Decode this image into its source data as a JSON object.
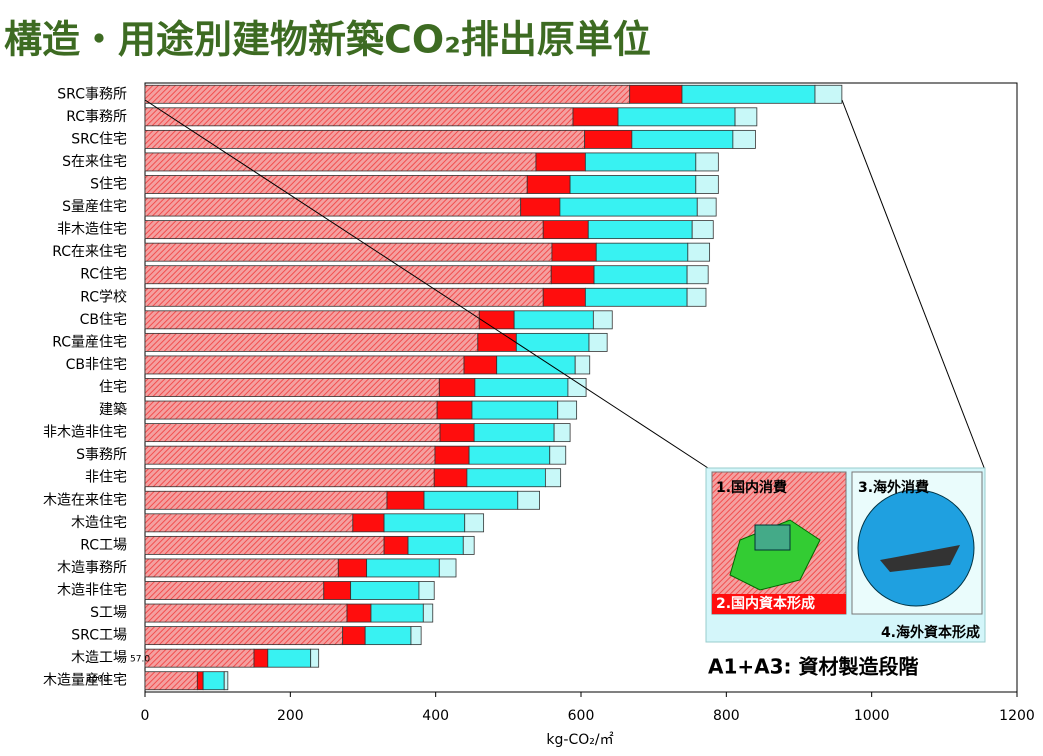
{
  "chart_data": {
    "type": "stacked-barh",
    "title": "構造・用途別建物新築CO₂排出原単位",
    "xlabel": "kg-CO₂/㎡",
    "annotations": [
      "A1+A3: 資材製造段階",
      "57.0",
      "2008"
    ],
    "categories": [
      "SRC事務所",
      "RC事務所",
      "SRC住宅",
      "S在来住宅",
      "S住宅",
      "S量産住宅",
      "非木造住宅",
      "RC在来住宅",
      "RC住宅",
      "RC学校",
      "CB住宅",
      "RC量産住宅",
      "CB非住宅",
      "住宅",
      "建築",
      "非木造非住宅",
      "S事務所",
      "非住宅",
      "木造在来住宅",
      "木造住宅",
      "RC工場",
      "木造事務所",
      "木造非住宅",
      "S工場",
      "SRC工場",
      "木造工場",
      "木造量産住宅"
    ],
    "series": [
      {
        "name": "1.国内消費",
        "color": "#f24e4e",
        "values": [
          667,
          589,
          605,
          538,
          526,
          517,
          548,
          560,
          559,
          548,
          460,
          458,
          439,
          405,
          402,
          406,
          399,
          398,
          333,
          286,
          329,
          266,
          246,
          278,
          272,
          150,
          72
        ]
      },
      {
        "name": "2.国内資本形成",
        "color": "#ff0d0d",
        "values": [
          72,
          62,
          65,
          68,
          59,
          54,
          62,
          61,
          59,
          58,
          48,
          53,
          45,
          49,
          48,
          47,
          47,
          45,
          51,
          43,
          33,
          39,
          37,
          33,
          31,
          19,
          8
        ]
      },
      {
        "name": "3.海外消費",
        "color": "#38f2f2",
        "values": [
          183,
          161,
          139,
          152,
          173,
          189,
          143,
          126,
          128,
          140,
          109,
          100,
          108,
          128,
          118,
          110,
          111,
          108,
          129,
          111,
          76,
          100,
          94,
          72,
          63,
          59,
          29
        ]
      },
      {
        "name": "4.海外資本形成",
        "color": "#c8f8f8",
        "values": [
          37,
          30,
          31,
          31,
          31,
          26,
          29,
          30,
          29,
          26,
          26,
          25,
          20,
          25,
          26,
          22,
          22,
          21,
          30,
          26,
          15,
          23,
          21,
          13,
          14,
          11,
          5
        ]
      }
    ],
    "xlim": [
      0,
      1200
    ],
    "xticks": [
      0,
      200,
      400,
      600,
      800,
      1000,
      1200
    ]
  }
}
